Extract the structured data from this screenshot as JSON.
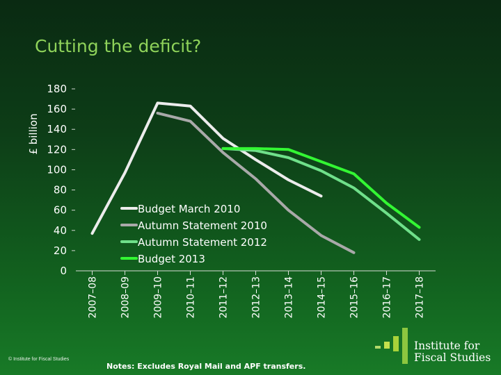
{
  "title": "Cutting the deficit?",
  "copyright": "© Institute for Fiscal Studies",
  "note": "Notes: Excludes Royal Mail and APF transfers.",
  "logo": {
    "line1": "Institute for",
    "line2": "Fiscal Studies"
  },
  "chart_data": {
    "type": "line",
    "ylabel": "£ billion",
    "xlabel": "",
    "ylim": [
      0,
      180
    ],
    "yticks": [
      0,
      20,
      40,
      60,
      80,
      100,
      120,
      140,
      160,
      180
    ],
    "categories": [
      "2007–08",
      "2008–09",
      "2009–10",
      "2010–11",
      "2011–12",
      "2012–13",
      "2013–14",
      "2014–15",
      "2015–16",
      "2016–17",
      "2017–18"
    ],
    "legend_position": "lower-left",
    "series": [
      {
        "name": "Budget March 2010",
        "color": "#ececec",
        "values": [
          37,
          97,
          166,
          163,
          131,
          110,
          90,
          74,
          null,
          null,
          null
        ]
      },
      {
        "name": "Autumn Statement 2010",
        "color": "#a9a9a9",
        "values": [
          null,
          null,
          156,
          148,
          117,
          91,
          60,
          35,
          18,
          null,
          null
        ]
      },
      {
        "name": "Autumn Statement 2012",
        "color": "#6fe08a",
        "values": [
          null,
          null,
          null,
          null,
          121,
          119,
          112,
          99,
          82,
          57,
          31
        ]
      },
      {
        "name": "Budget 2013",
        "color": "#33f633",
        "values": [
          null,
          null,
          null,
          null,
          121,
          121,
          120,
          108,
          96,
          67,
          43
        ]
      }
    ]
  }
}
